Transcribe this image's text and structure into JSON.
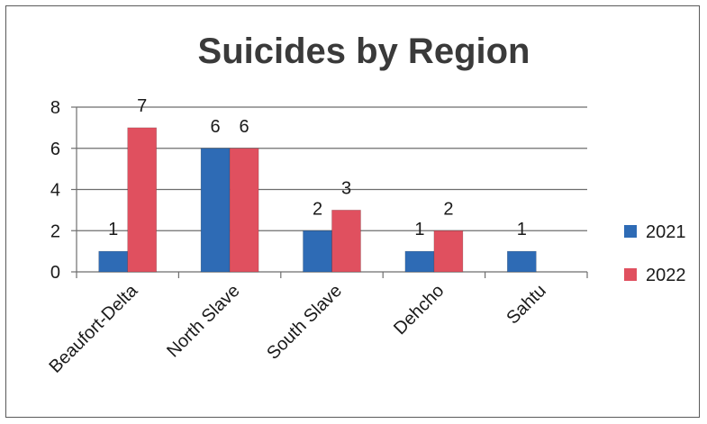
{
  "chart_data": {
    "type": "bar",
    "title": "Suicides by Region",
    "categories": [
      "Beaufort-Delta",
      "North Slave",
      "South Slave",
      "Dehcho",
      "Sahtu"
    ],
    "series": [
      {
        "name": "2021",
        "values": [
          1,
          6,
          2,
          1,
          1
        ],
        "color": "#2e6bb5"
      },
      {
        "name": "2022",
        "values": [
          7,
          6,
          3,
          2,
          null
        ],
        "color": "#e0505f"
      }
    ],
    "yticks": [
      "0",
      "2",
      "4",
      "6",
      "8"
    ],
    "ylim": [
      0,
      8
    ],
    "grid": true,
    "legend": "right",
    "data_labels": [
      [
        "1",
        "6",
        "2",
        "1",
        "1"
      ],
      [
        "7",
        "6",
        "3",
        "2",
        ""
      ]
    ]
  }
}
